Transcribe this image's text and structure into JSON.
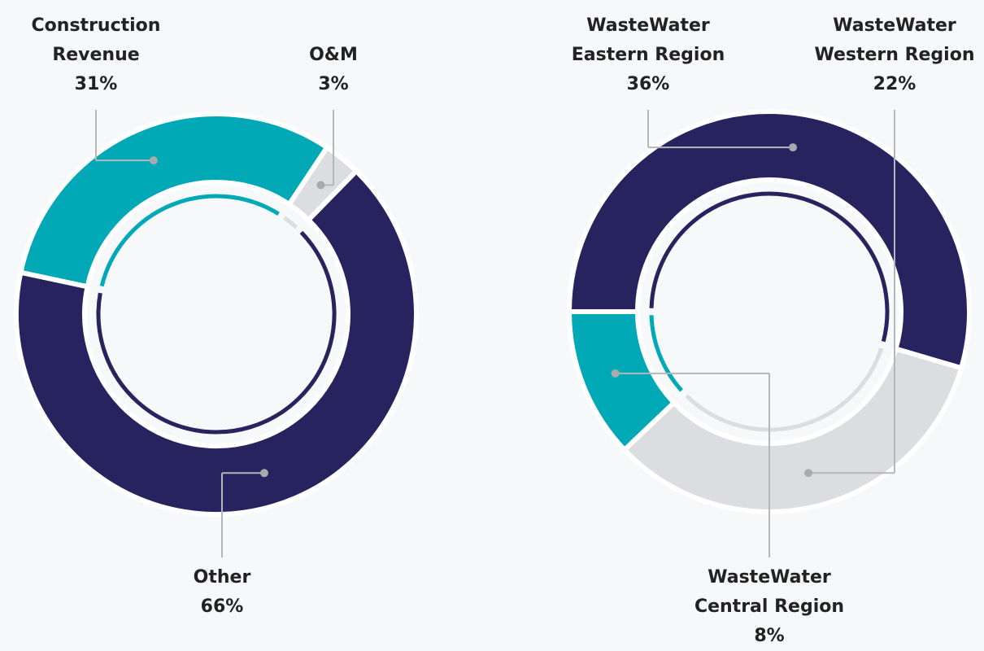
{
  "chart_data": [
    {
      "type": "pie",
      "categories": [
        "Construction Revenue",
        "O&M",
        "Other"
      ],
      "values": [
        31,
        3,
        66
      ],
      "value_labels": [
        "31%",
        "3%",
        "66%"
      ],
      "colors": [
        "#00a9b5",
        "#dcdde0",
        "#27235e"
      ]
    },
    {
      "type": "pie",
      "categories": [
        "WasteWater Eastern Region",
        "WasteWater Western Region",
        "WasteWater Central Region"
      ],
      "values": [
        36,
        22,
        8
      ],
      "value_labels": [
        "36%",
        "22%",
        "8%"
      ],
      "colors": [
        "#27235e",
        "#dcdde0",
        "#00a9b5"
      ]
    }
  ]
}
